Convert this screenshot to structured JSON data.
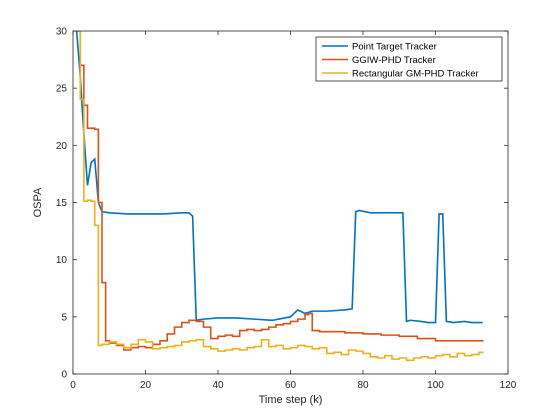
{
  "chart_data": {
    "type": "line",
    "xlabel": "Time step (k)",
    "ylabel": "OSPA",
    "xlim": [
      0,
      120
    ],
    "ylim": [
      0,
      30
    ],
    "xticks": [
      0,
      20,
      40,
      60,
      80,
      100,
      120
    ],
    "yticks": [
      0,
      5,
      10,
      15,
      20,
      25,
      30
    ],
    "grid": false,
    "legend_location": "top-right",
    "series": [
      {
        "name": "Point Target Tracker",
        "color": "#0072BD",
        "step": false,
        "x": [
          1,
          2,
          3,
          4,
          5,
          6,
          7,
          8,
          10,
          15,
          20,
          25,
          30,
          32,
          33,
          34,
          36,
          40,
          45,
          50,
          55,
          60,
          62,
          64,
          66,
          70,
          75,
          77,
          78,
          79,
          82,
          86,
          89,
          91,
          92,
          93,
          96,
          98,
          100,
          101,
          102,
          103,
          105,
          108,
          110,
          112,
          113
        ],
        "y": [
          30,
          26,
          21,
          16.5,
          18.5,
          18.8,
          15,
          14.2,
          14.1,
          14,
          14,
          14,
          14.1,
          14.1,
          13.8,
          4.7,
          4.8,
          4.9,
          4.9,
          4.8,
          4.7,
          5,
          5.6,
          5.3,
          5.5,
          5.5,
          5.6,
          5.7,
          14.2,
          14.3,
          14.1,
          14.1,
          14.1,
          14.1,
          4.6,
          4.7,
          4.6,
          4.5,
          4.5,
          14,
          14,
          4.6,
          4.5,
          4.6,
          4.5,
          4.5,
          4.5
        ]
      },
      {
        "name": "GGIW-PHD Tracker",
        "color": "#D95319",
        "step": true,
        "x": [
          1,
          2,
          3,
          4,
          6,
          7,
          8,
          9,
          10,
          12,
          14,
          16,
          18,
          20,
          22,
          24,
          26,
          28,
          30,
          32,
          34,
          36,
          38,
          40,
          42,
          44,
          46,
          48,
          50,
          52,
          54,
          56,
          58,
          60,
          62,
          64,
          65,
          66,
          68,
          70,
          75,
          80,
          85,
          90,
          95,
          100,
          105,
          110,
          113
        ],
        "y": [
          30,
          27,
          23.5,
          21.5,
          21.4,
          15,
          8,
          2.9,
          2.7,
          2.5,
          2.1,
          2.3,
          2.4,
          2.3,
          2.6,
          2.9,
          3.5,
          4.1,
          4.5,
          4.7,
          4.6,
          4.1,
          3.1,
          3.3,
          3.4,
          3.3,
          3.8,
          3.9,
          3.8,
          3.9,
          4.1,
          4.3,
          4.4,
          4.6,
          4.8,
          5.2,
          5.3,
          3.8,
          3.7,
          3.7,
          3.6,
          3.5,
          3.4,
          3.3,
          3.1,
          2.9,
          2.9,
          2.9,
          3.0
        ]
      },
      {
        "name": "Rectangular GM-PHD Tracker",
        "color": "#EDB120",
        "step": true,
        "x": [
          1,
          2,
          3,
          4,
          5,
          6,
          7,
          8,
          10,
          12,
          14,
          16,
          18,
          20,
          22,
          24,
          26,
          28,
          30,
          32,
          34,
          36,
          38,
          40,
          42,
          44,
          46,
          48,
          50,
          52,
          54,
          56,
          58,
          60,
          62,
          64,
          66,
          68,
          70,
          72,
          74,
          76,
          78,
          80,
          82,
          84,
          86,
          88,
          90,
          92,
          94,
          96,
          98,
          100,
          102,
          104,
          106,
          108,
          110,
          112,
          113
        ],
        "y": [
          30,
          24,
          15.1,
          15.2,
          15.1,
          13,
          2.5,
          2.6,
          2.8,
          2.6,
          2.3,
          2.6,
          3.0,
          2.8,
          2.2,
          2.3,
          2.4,
          2.5,
          2.8,
          2.9,
          3.0,
          2.4,
          2.2,
          2.0,
          2.1,
          2.2,
          2.1,
          2.3,
          2.4,
          3.0,
          2.4,
          2.5,
          2.2,
          2.3,
          2.5,
          2.4,
          2.2,
          2.3,
          1.8,
          1.9,
          1.7,
          2.1,
          2.0,
          1.8,
          1.5,
          1.4,
          1.6,
          1.3,
          1.4,
          1.2,
          1.4,
          1.5,
          1.4,
          1.6,
          1.7,
          1.5,
          1.8,
          1.6,
          1.7,
          1.9,
          1.8
        ]
      }
    ]
  }
}
